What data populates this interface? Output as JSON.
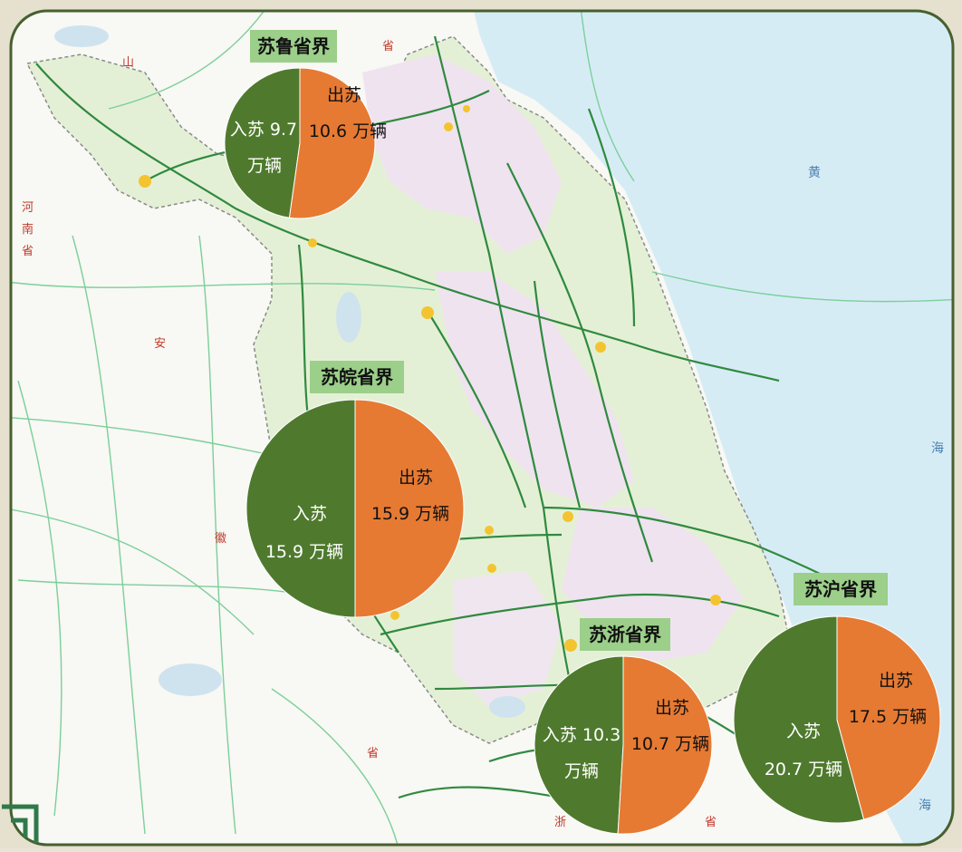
{
  "colors": {
    "inbound": "#4f7a2e",
    "outbound": "#e67a33",
    "label_bg": "#9ccf8a",
    "sea": "#d6ecf5",
    "land": "#f8f8f4",
    "province_green": "#e4f0d6",
    "province_pink": "#f2e6f2",
    "highway": "#2f8a3f",
    "frame_border": "#46602f"
  },
  "map_labels": {
    "shandong": "山",
    "sheng_top": "省",
    "henan": "河",
    "henan_nan": "南",
    "henan_sheng": "省",
    "anhui_an": "安",
    "anhui_hui": "徽",
    "sheng_bottom": "省",
    "zhejiang_zhe": "浙",
    "zhejiang_sheng": "省",
    "sea_huang": "黄",
    "sea_hai": "海",
    "sea_hai2": "海"
  },
  "chart_data": {
    "type": "pie",
    "charts": [
      {
        "title": "苏鲁省界",
        "slices": [
          {
            "name": "入苏",
            "value": 9.7,
            "unit": "万辆",
            "color": "#4f7a2e"
          },
          {
            "name": "出苏",
            "value": 10.6,
            "unit": "万辆",
            "color": "#e67a33"
          }
        ],
        "in_text": "入苏 9.7",
        "in_text2": "万辆",
        "out_text": "出苏",
        "out_text2": "10.6 万辆"
      },
      {
        "title": "苏皖省界",
        "slices": [
          {
            "name": "入苏",
            "value": 15.9,
            "unit": "万辆",
            "color": "#4f7a2e"
          },
          {
            "name": "出苏",
            "value": 15.9,
            "unit": "万辆",
            "color": "#e67a33"
          }
        ],
        "in_text": "入苏",
        "in_text2": "15.9 万辆",
        "out_text": "出苏",
        "out_text2": "15.9 万辆"
      },
      {
        "title": "苏浙省界",
        "slices": [
          {
            "name": "入苏",
            "value": 10.3,
            "unit": "万辆",
            "color": "#4f7a2e"
          },
          {
            "name": "出苏",
            "value": 10.7,
            "unit": "万辆",
            "color": "#e67a33"
          }
        ],
        "in_text": "入苏 10.3",
        "in_text2": "万辆",
        "out_text": "出苏",
        "out_text2": "10.7 万辆"
      },
      {
        "title": "苏沪省界",
        "slices": [
          {
            "name": "入苏",
            "value": 20.7,
            "unit": "万辆",
            "color": "#4f7a2e"
          },
          {
            "name": "出苏",
            "value": 17.5,
            "unit": "万辆",
            "color": "#e67a33"
          }
        ],
        "in_text": "入苏",
        "in_text2": "20.7 万辆",
        "out_text": "出苏",
        "out_text2": "17.5 万辆"
      }
    ]
  }
}
